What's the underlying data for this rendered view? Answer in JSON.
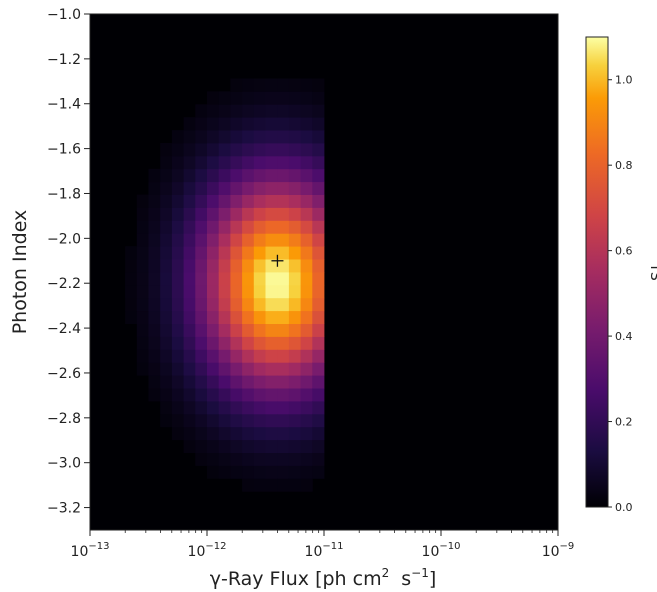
{
  "chart_data": {
    "type": "heatmap",
    "title": "",
    "xlabel": "γ-Ray Flux [ph cm",
    "xlabel_sup": "2",
    "xlabel_tail": "s",
    "xlabel_tail_sup": "−1",
    "xlabel_close": "]",
    "ylabel": "Photon Index",
    "colorbar_label": "TS",
    "x_scale": "log",
    "xlim": [
      1e-13,
      1e-09
    ],
    "ylim": [
      -3.3,
      -1.0
    ],
    "x_ticks": [
      {
        "value": 1e-13,
        "base": "10",
        "exp": "−13"
      },
      {
        "value": 1e-12,
        "base": "10",
        "exp": "−12"
      },
      {
        "value": 1e-11,
        "base": "10",
        "exp": "−11"
      },
      {
        "value": 1e-10,
        "base": "10",
        "exp": "−10"
      },
      {
        "value": 1e-09,
        "base": "10",
        "exp": "−9"
      }
    ],
    "y_ticks": [
      {
        "value": -1.0,
        "label": "−1.0"
      },
      {
        "value": -1.2,
        "label": "−1.2"
      },
      {
        "value": -1.4,
        "label": "−1.4"
      },
      {
        "value": -1.6,
        "label": "−1.6"
      },
      {
        "value": -1.8,
        "label": "−1.8"
      },
      {
        "value": -2.0,
        "label": "−2.0"
      },
      {
        "value": -2.2,
        "label": "−2.2"
      },
      {
        "value": -2.4,
        "label": "−2.4"
      },
      {
        "value": -2.6,
        "label": "−2.6"
      },
      {
        "value": -2.8,
        "label": "−2.8"
      },
      {
        "value": -3.0,
        "label": "−3.0"
      },
      {
        "value": -3.2,
        "label": "−3.2"
      }
    ],
    "colorbar_ticks": [
      {
        "value": 0.0,
        "label": "0.0"
      },
      {
        "value": 0.2,
        "label": "0.2"
      },
      {
        "value": 0.4,
        "label": "0.4"
      },
      {
        "value": 0.6,
        "label": "0.6"
      },
      {
        "value": 0.8,
        "label": "0.8"
      },
      {
        "value": 1.0,
        "label": "1.0"
      }
    ],
    "colorbar_range": [
      0.0,
      1.1
    ],
    "colormap": "inferno",
    "grid": false,
    "best_fit_marker": {
      "flux": 4e-12,
      "index": -2.1,
      "symbol": "+"
    },
    "grid_spec": {
      "log_flux_range": [
        -13.0,
        -9.0
      ],
      "log_flux_bins": 40,
      "index_range": [
        -3.3,
        -1.0
      ],
      "index_bins": 40
    },
    "ts_peak": {
      "log_flux": -11.4,
      "index": -2.2,
      "ts": 1.1,
      "sigma_log_flux": 0.45,
      "sigma_index": 0.33,
      "cutoff_log_flux": -11.05
    }
  }
}
